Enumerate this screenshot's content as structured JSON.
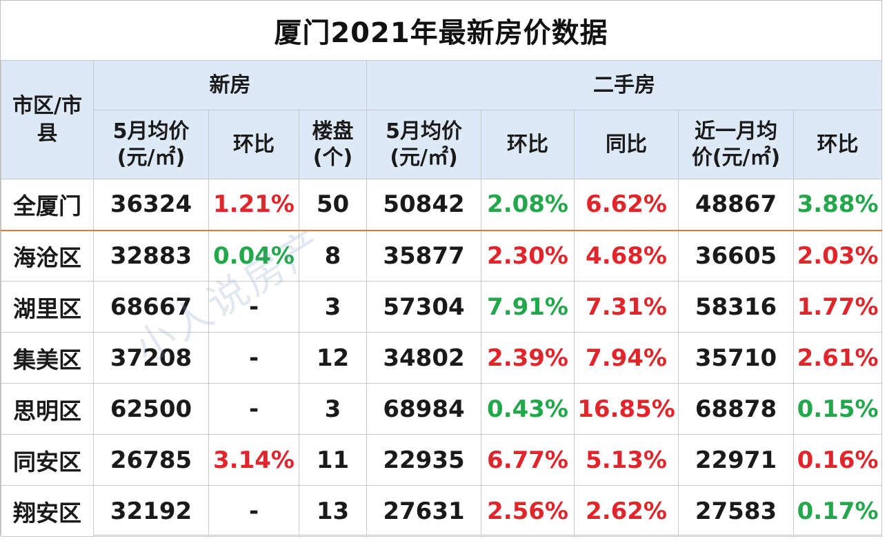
{
  "title": "厦门2021年最新房价数据",
  "headers": {
    "district": "市区/市县",
    "new_house": "新房",
    "second_hand": "二手房",
    "new_avg_price": "5月均价\n(元/㎡)",
    "new_mom": "环比",
    "new_projects": "楼盘\n(个)",
    "sh_avg_price": "5月均价\n(元/㎡)",
    "sh_mom": "环比",
    "sh_yoy": "同比",
    "sh_recent_avg": "近一月均\n价(元/㎡)",
    "sh_recent_mom": "环比"
  },
  "rows": [
    {
      "district": "全厦门",
      "new_price": "36324",
      "new_mom": "1.21%",
      "new_mom_trend": "up",
      "projects": "50",
      "sh_price": "50842",
      "sh_mom": "2.08%",
      "sh_mom_trend": "down",
      "sh_yoy": "6.62%",
      "sh_yoy_trend": "up",
      "recent_price": "48867",
      "recent_mom": "3.88%",
      "recent_mom_trend": "down"
    },
    {
      "district": "海沧区",
      "new_price": "32883",
      "new_mom": "0.04%",
      "new_mom_trend": "down",
      "projects": "8",
      "sh_price": "35877",
      "sh_mom": "2.30%",
      "sh_mom_trend": "up",
      "sh_yoy": "4.68%",
      "sh_yoy_trend": "up",
      "recent_price": "36605",
      "recent_mom": "2.03%",
      "recent_mom_trend": "up"
    },
    {
      "district": "湖里区",
      "new_price": "68667",
      "new_mom": "-",
      "new_mom_trend": "none",
      "projects": "3",
      "sh_price": "57304",
      "sh_mom": "7.91%",
      "sh_mom_trend": "down",
      "sh_yoy": "7.31%",
      "sh_yoy_trend": "up",
      "recent_price": "58316",
      "recent_mom": "1.77%",
      "recent_mom_trend": "up"
    },
    {
      "district": "集美区",
      "new_price": "37208",
      "new_mom": "-",
      "new_mom_trend": "none",
      "projects": "12",
      "sh_price": "34802",
      "sh_mom": "2.39%",
      "sh_mom_trend": "up",
      "sh_yoy": "7.94%",
      "sh_yoy_trend": "up",
      "recent_price": "35710",
      "recent_mom": "2.61%",
      "recent_mom_trend": "up"
    },
    {
      "district": "思明区",
      "new_price": "62500",
      "new_mom": "-",
      "new_mom_trend": "none",
      "projects": "3",
      "sh_price": "68984",
      "sh_mom": "0.43%",
      "sh_mom_trend": "down",
      "sh_yoy": "16.85%",
      "sh_yoy_trend": "up",
      "recent_price": "68878",
      "recent_mom": "0.15%",
      "recent_mom_trend": "down"
    },
    {
      "district": "同安区",
      "new_price": "26785",
      "new_mom": "3.14%",
      "new_mom_trend": "up",
      "projects": "11",
      "sh_price": "22935",
      "sh_mom": "6.77%",
      "sh_mom_trend": "up",
      "sh_yoy": "5.13%",
      "sh_yoy_trend": "up",
      "recent_price": "22971",
      "recent_mom": "0.16%",
      "recent_mom_trend": "up"
    },
    {
      "district": "翔安区",
      "new_price": "32192",
      "new_mom": "-",
      "new_mom_trend": "none",
      "projects": "13",
      "sh_price": "27631",
      "sh_mom": "2.56%",
      "sh_mom_trend": "up",
      "sh_yoy": "2.62%",
      "sh_yoy_trend": "up",
      "recent_price": "27583",
      "recent_mom": "0.17%",
      "recent_mom_trend": "down"
    }
  ],
  "watermark": "小人说房产",
  "colors": {
    "up": "#e0262b",
    "down": "#22a84a",
    "header_bg": "#dde9f6",
    "divider": "#e07a3a"
  }
}
